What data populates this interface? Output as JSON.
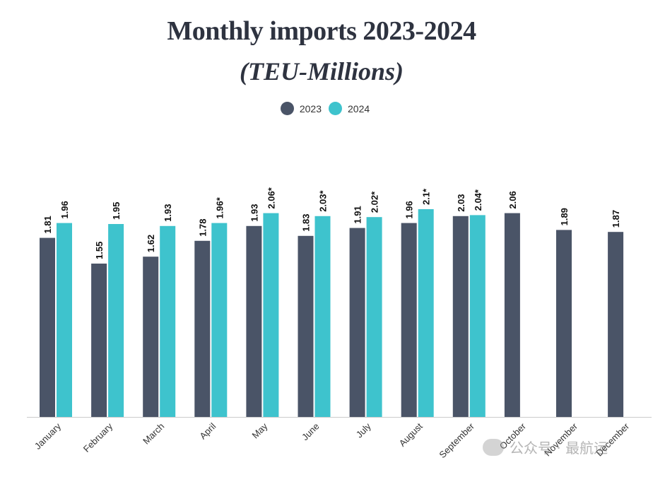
{
  "colors": {
    "series_2023": "#4a5467",
    "series_2024": "#3ec3cd",
    "axis": "#cccccc",
    "label": "#111111"
  },
  "watermark": "公众号 · 最航运",
  "chart_data": {
    "type": "bar",
    "title": "Monthly imports 2023-2024",
    "subtitle": "(TEU-Millions)",
    "categories": [
      "January",
      "February",
      "March",
      "April",
      "May",
      "June",
      "July",
      "August",
      "September",
      "October",
      "November",
      "December"
    ],
    "series": [
      {
        "name": "2023",
        "values": [
          1.81,
          1.55,
          1.62,
          1.78,
          1.93,
          1.83,
          1.91,
          1.96,
          2.03,
          2.06,
          1.89,
          1.87
        ],
        "labels": [
          "1.81",
          "1.55",
          "1.62",
          "1.78",
          "1.93",
          "1.83",
          "1.91",
          "1.96",
          "2.03",
          "2.06",
          "1.89",
          "1.87"
        ]
      },
      {
        "name": "2024",
        "values": [
          1.96,
          1.95,
          1.93,
          1.96,
          2.06,
          2.03,
          2.02,
          2.1,
          2.04,
          null,
          null,
          null
        ],
        "labels": [
          "1.96",
          "1.95",
          "1.93",
          "1.96*",
          "2.06*",
          "2.03*",
          "2.02*",
          "2.1*",
          "2.04*",
          null,
          null,
          null
        ]
      }
    ],
    "ylim": [
      0,
      2.2
    ],
    "legend_position": "top-center",
    "grid": false
  }
}
